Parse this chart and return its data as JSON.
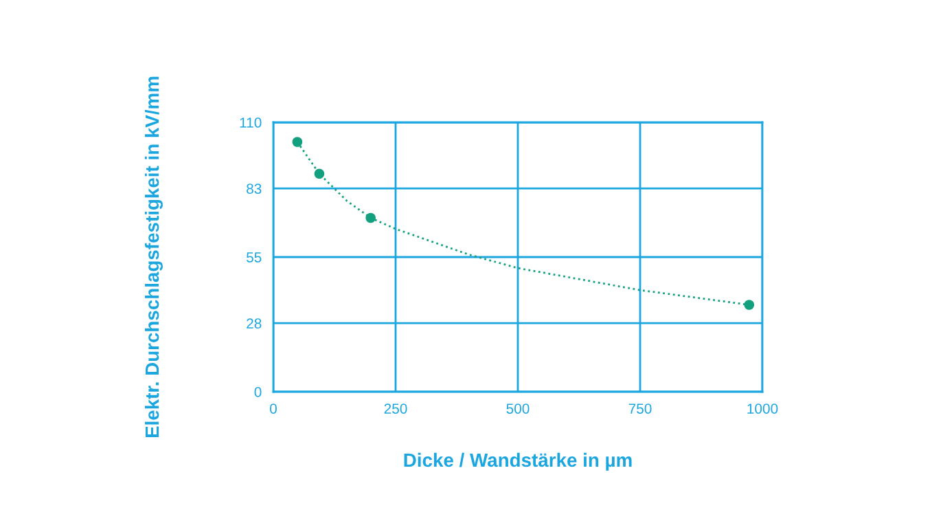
{
  "chart_data": {
    "type": "scatter",
    "xlabel": "Dicke / Wandstärke in µm",
    "ylabel": "Elektr. Durchschlagsfestigkeit in kV/mm",
    "series": [
      {
        "color": "#12a07e",
        "x": [
          49,
          94,
          199,
          973
        ],
        "values": [
          102,
          89,
          71,
          35.5
        ],
        "marker": "circle"
      },
      {
        "type": "line",
        "color": "#12a07e",
        "line_style": "dotted",
        "marker": "none",
        "x": [
          49,
          94,
          150,
          199,
          250,
          400,
          500,
          750,
          973
        ],
        "values": [
          102,
          89,
          78,
          71,
          66.5,
          56,
          50.5,
          41.5,
          35.5
        ]
      }
    ],
    "xlim": [
      0,
      1000
    ],
    "xticks": [
      0,
      250,
      500,
      750,
      1000
    ],
    "ylim": [
      0,
      110
    ],
    "yticks": [
      0,
      28,
      55,
      83,
      110
    ],
    "grid": true,
    "legend": false
  }
}
